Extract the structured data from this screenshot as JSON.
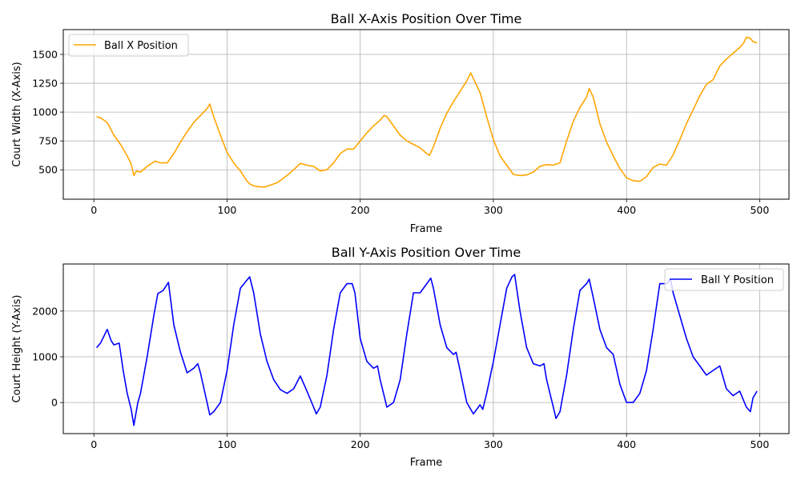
{
  "charts": {
    "x_chart": {
      "title": "Ball X-Axis Position Over Time",
      "xlabel": "Frame",
      "ylabel": "Court Width (X-Axis)",
      "legend": "Ball X Position"
    },
    "y_chart": {
      "title": "Ball Y-Axis Position Over Time",
      "xlabel": "Frame",
      "ylabel": "Court Height (Y-Axis)",
      "legend": "Ball Y Position"
    }
  },
  "chart_data": [
    {
      "type": "line",
      "title": "Ball X-Axis Position Over Time",
      "xlabel": "Frame",
      "ylabel": "Court Width (X-Axis)",
      "xlim": [
        -23,
        522
      ],
      "ylim": [
        245,
        1715
      ],
      "xticks": [
        0,
        100,
        200,
        300,
        400,
        500
      ],
      "yticks": [
        500,
        750,
        1000,
        1250,
        1500
      ],
      "grid": true,
      "legend_position": "upper-left",
      "series": [
        {
          "name": "Ball X Position",
          "color": "#ffa500",
          "x": [
            2,
            5,
            10,
            15,
            20,
            25,
            28,
            30,
            32,
            35,
            40,
            46,
            50,
            55,
            60,
            65,
            70,
            75,
            80,
            85,
            87,
            90,
            95,
            100,
            105,
            110,
            115,
            118,
            122,
            128,
            132,
            138,
            145,
            150,
            155,
            160,
            165,
            170,
            175,
            180,
            185,
            190,
            195,
            200,
            205,
            210,
            215,
            218,
            220,
            225,
            230,
            235,
            240,
            245,
            250,
            252,
            255,
            260,
            265,
            270,
            275,
            280,
            283,
            285,
            290,
            295,
            300,
            305,
            310,
            315,
            320,
            325,
            330,
            335,
            340,
            345,
            350,
            355,
            360,
            365,
            370,
            372,
            375,
            380,
            385,
            390,
            395,
            400,
            405,
            410,
            415,
            420,
            425,
            430,
            435,
            440,
            445,
            450,
            455,
            460,
            465,
            470,
            475,
            480,
            485,
            488,
            490,
            493,
            495,
            498
          ],
          "y": [
            960,
            950,
            910,
            800,
            720,
            620,
            550,
            450,
            490,
            480,
            530,
            575,
            560,
            560,
            640,
            740,
            830,
            910,
            970,
            1030,
            1070,
            960,
            800,
            650,
            560,
            490,
            400,
            370,
            355,
            350,
            365,
            390,
            450,
            500,
            555,
            540,
            530,
            490,
            500,
            560,
            640,
            680,
            680,
            750,
            820,
            880,
            930,
            970,
            960,
            880,
            800,
            750,
            720,
            690,
            640,
            625,
            700,
            860,
            990,
            1090,
            1180,
            1270,
            1340,
            1290,
            1170,
            960,
            760,
            620,
            540,
            460,
            450,
            455,
            480,
            530,
            545,
            540,
            560,
            750,
            920,
            1040,
            1130,
            1205,
            1130,
            900,
            740,
            620,
            510,
            430,
            405,
            400,
            440,
            520,
            550,
            540,
            630,
            760,
            900,
            1020,
            1140,
            1240,
            1280,
            1400,
            1460,
            1510,
            1560,
            1600,
            1650,
            1640,
            1610,
            1600
          ]
        }
      ]
    },
    {
      "type": "line",
      "title": "Ball Y-Axis Position Over Time",
      "xlabel": "Frame",
      "ylabel": "Court Height (Y-Axis)",
      "xlim": [
        -23,
        522
      ],
      "ylim": [
        -680,
        3030
      ],
      "xticks": [
        0,
        100,
        200,
        300,
        400,
        500
      ],
      "yticks": [
        0,
        1000,
        2000
      ],
      "grid": true,
      "legend_position": "upper-right",
      "series": [
        {
          "name": "Ball Y Position",
          "color": "#0000ff",
          "x": [
            2,
            5,
            10,
            13,
            15,
            19,
            22,
            25,
            28,
            30,
            33,
            35,
            40,
            45,
            48,
            52,
            56,
            60,
            65,
            70,
            75,
            78,
            80,
            85,
            87,
            90,
            95,
            100,
            105,
            110,
            115,
            117,
            120,
            125,
            130,
            135,
            140,
            145,
            150,
            155,
            160,
            165,
            167,
            170,
            175,
            180,
            185,
            190,
            194,
            196,
            200,
            205,
            210,
            213,
            215,
            220,
            225,
            230,
            235,
            240,
            245,
            250,
            253,
            255,
            260,
            265,
            270,
            272,
            275,
            280,
            285,
            290,
            292,
            295,
            300,
            305,
            310,
            314,
            316,
            320,
            325,
            330,
            335,
            338,
            340,
            345,
            347,
            350,
            355,
            360,
            365,
            370,
            372,
            375,
            380,
            385,
            390,
            395,
            400,
            403,
            405,
            410,
            415,
            420,
            425,
            430,
            433,
            435,
            440,
            445,
            450,
            455,
            460,
            465,
            470,
            475,
            480,
            485,
            490,
            493,
            495,
            498
          ],
          "y": [
            1200,
            1300,
            1600,
            1350,
            1260,
            1300,
            700,
            200,
            -150,
            -500,
            0,
            200,
            1000,
            1900,
            2380,
            2450,
            2630,
            1700,
            1100,
            650,
            750,
            850,
            650,
            0,
            -270,
            -200,
            0,
            700,
            1700,
            2500,
            2680,
            2750,
            2400,
            1500,
            900,
            500,
            280,
            200,
            300,
            580,
            250,
            -100,
            -250,
            -100,
            600,
            1600,
            2400,
            2600,
            2600,
            2400,
            1400,
            900,
            750,
            800,
            500,
            -100,
            0,
            500,
            1500,
            2400,
            2400,
            2600,
            2720,
            2500,
            1700,
            1200,
            1050,
            1100,
            700,
            0,
            -250,
            -50,
            -150,
            200,
            900,
            1700,
            2500,
            2750,
            2800,
            2000,
            1200,
            850,
            800,
            850,
            500,
            -100,
            -350,
            -200,
            600,
            1600,
            2450,
            2600,
            2700,
            2300,
            1600,
            1200,
            1050,
            400,
            0,
            0,
            0,
            200,
            700,
            1600,
            2600,
            2600,
            2700,
            2400,
            1900,
            1400,
            1000,
            800,
            600,
            700,
            800,
            300,
            150,
            250,
            -100,
            -200,
            100,
            250
          ]
        }
      ]
    }
  ]
}
